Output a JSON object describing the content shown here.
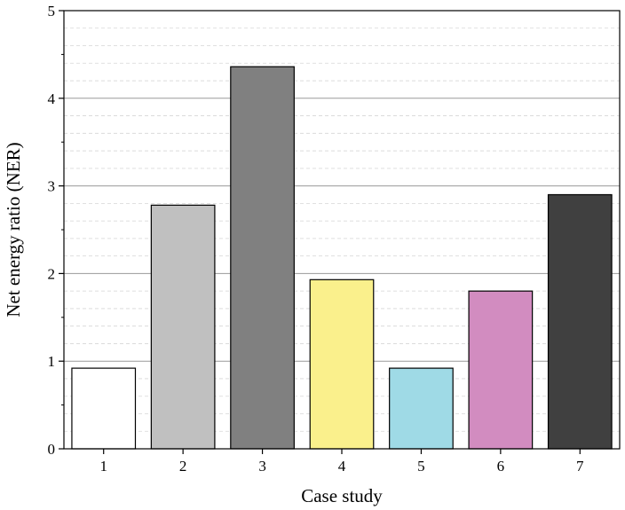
{
  "chart_data": {
    "type": "bar",
    "title": "",
    "xlabel": "Case study",
    "ylabel": "Net energy ratio (NER)",
    "categories": [
      "1",
      "2",
      "3",
      "4",
      "5",
      "6",
      "7"
    ],
    "values": [
      0.92,
      2.78,
      4.36,
      1.93,
      0.92,
      1.8,
      2.9
    ],
    "bar_colors": [
      "#ffffff",
      "#c0c0c0",
      "#808080",
      "#faf08c",
      "#9fdae6",
      "#d28cc0",
      "#404040"
    ],
    "ylim": [
      0,
      5
    ],
    "yticks": [
      "0",
      "1",
      "2",
      "3",
      "4",
      "5"
    ],
    "major_gridlines": true,
    "minor_gridlines": "dashed",
    "legend": "none"
  }
}
